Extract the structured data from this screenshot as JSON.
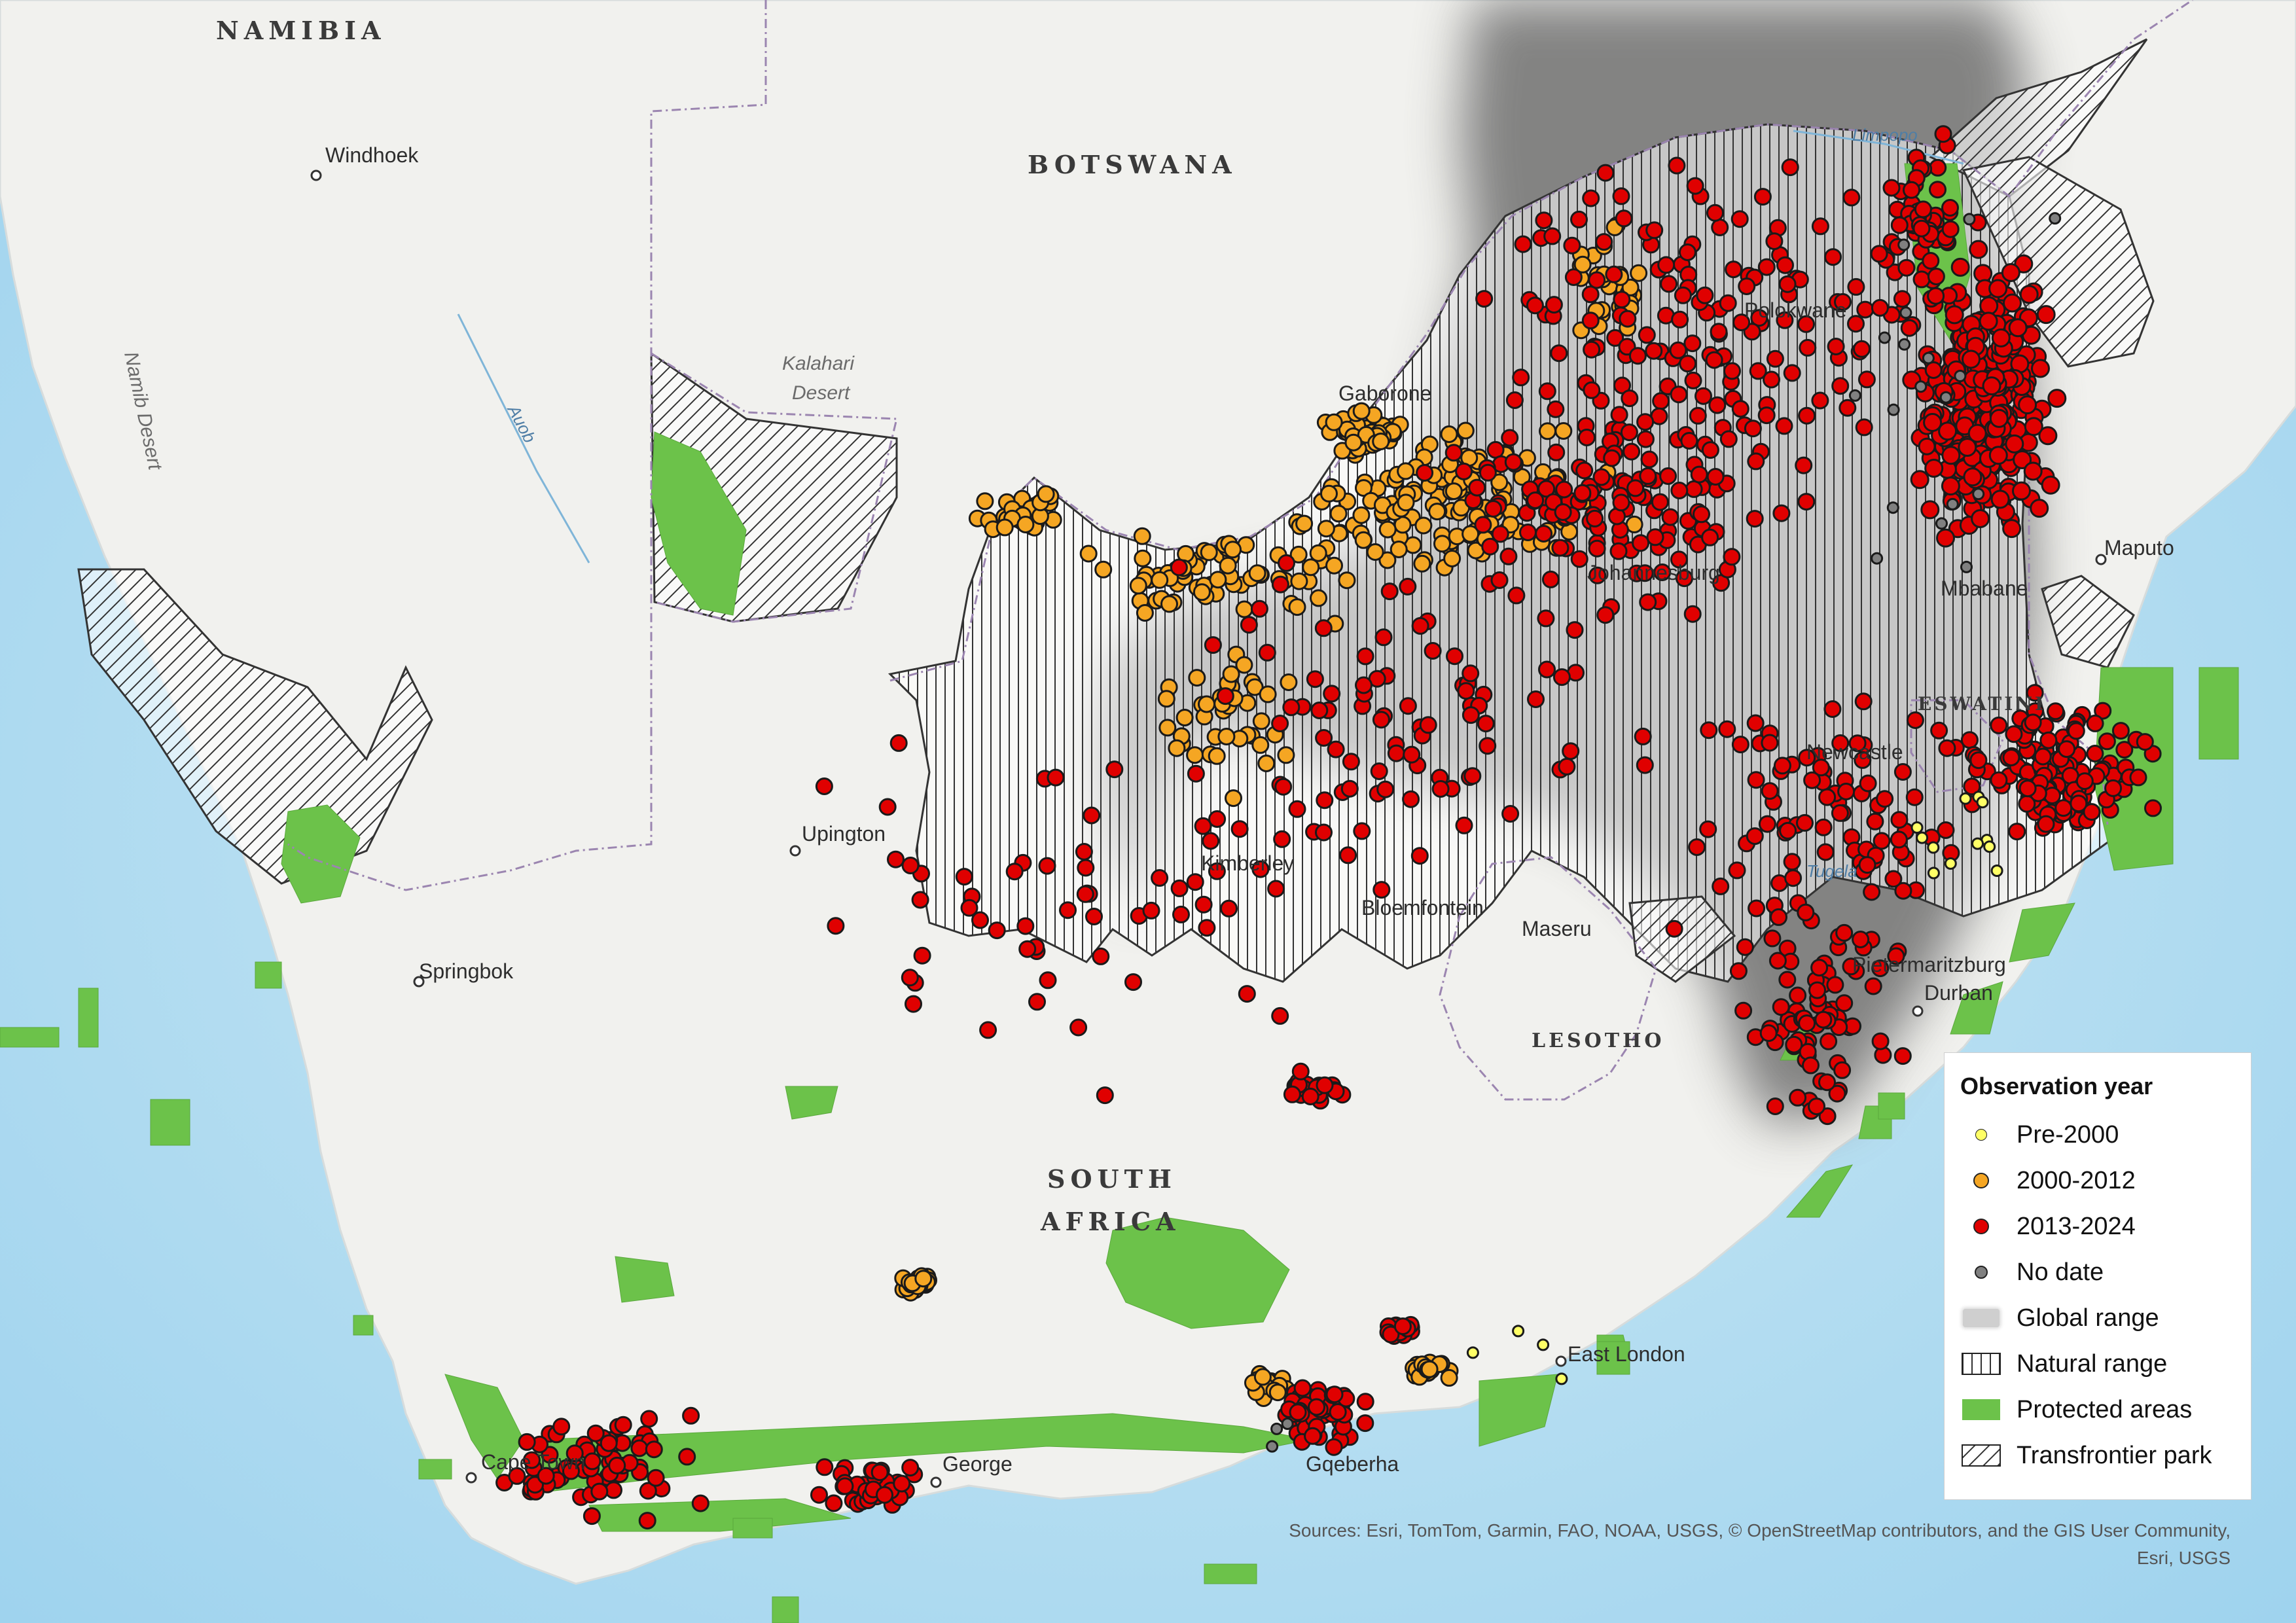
{
  "map": {
    "countries": [
      "NAMIBIA",
      "BOTSWANA",
      "SOUTH",
      "AFRICA",
      "LESOTHO",
      "ESWATINI"
    ],
    "cities": [
      "Windhoek",
      "Gaborone",
      "Polokwane",
      "Johannesburg",
      "Maputo",
      "Mbabane",
      "Newcastle",
      "Upington",
      "Kimberley",
      "Bloemfontein",
      "Maseru",
      "Springbok",
      "Pietermaritzburg",
      "Durban",
      "East London",
      "Gqeberha",
      "George",
      "Cape Town"
    ],
    "features": [
      "Kalahari",
      "Desert",
      "Namib Desert"
    ],
    "water": [
      "Auob",
      "Limpopo",
      "Tugela"
    ],
    "colors": {
      "ocean": "#bfe3f2",
      "land": "#f1f1ee",
      "protected": "#6cc24a",
      "global_range": "#6f6f6f",
      "pre2000": "#ffff66",
      "y2000_2012": "#f5a623",
      "y2013_2024": "#e00000",
      "nodate": "#808080"
    }
  },
  "legend": {
    "title": "Observation year",
    "items": [
      "Pre-2000",
      "2000-2012",
      "2013-2024",
      "No date",
      "Global range",
      "Natural range",
      "Protected areas",
      "Transfrontier park"
    ]
  },
  "sources": "Sources: Esri, TomTom, Garmin, FAO, NOAA, USGS, © OpenStreetMap contributors, and the GIS User Community, Esri, USGS"
}
